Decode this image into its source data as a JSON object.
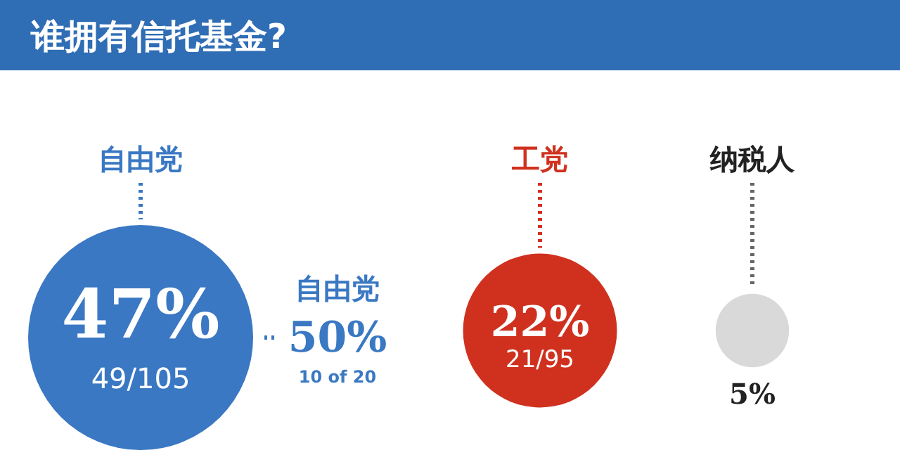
{
  "chart_data": {
    "type": "other",
    "title": "谁拥有信托基金?",
    "categories": [
      "自由党",
      "工党",
      "纳税人"
    ],
    "values": [
      47,
      22,
      5
    ],
    "value_labels": [
      "47%",
      "22%",
      "5%"
    ],
    "colors": [
      "#3a78c3",
      "#d0311f",
      "#d9d9d9"
    ],
    "annotations": [
      "49/105",
      "21/95",
      null,
      "自由党",
      "50%",
      "10 of 20"
    ]
  }
}
